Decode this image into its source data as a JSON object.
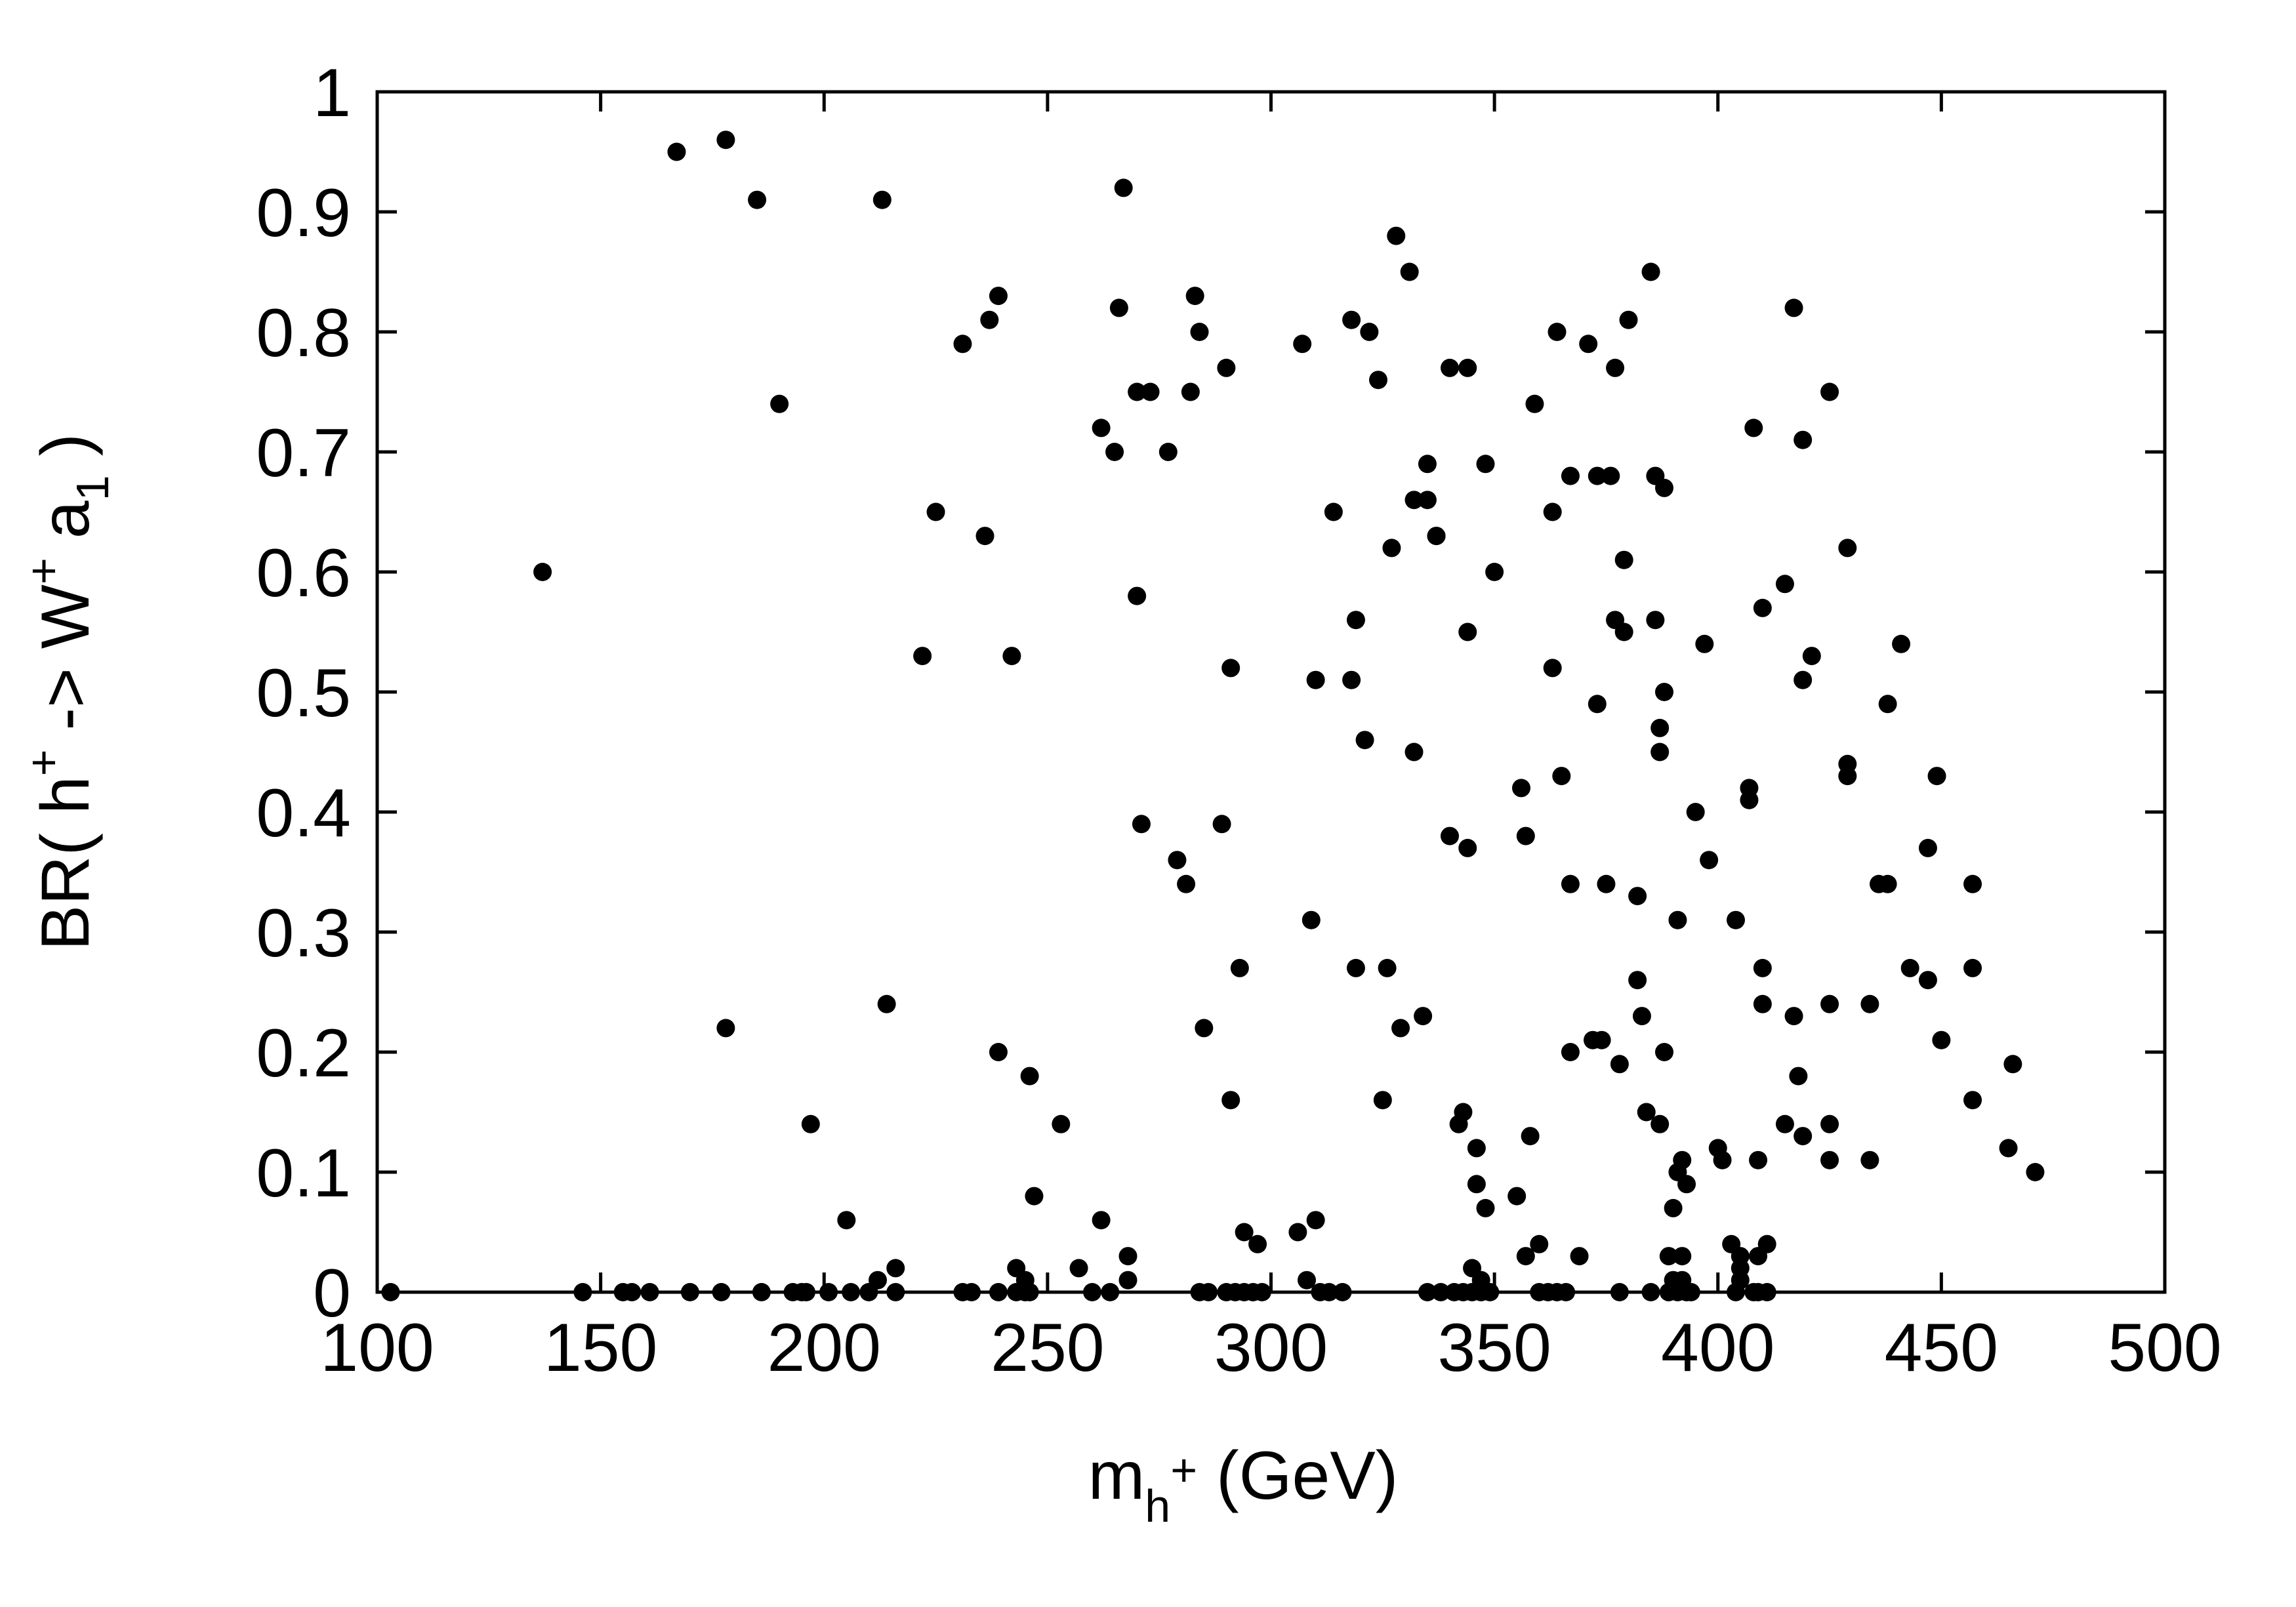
{
  "chart_data": {
    "type": "scatter",
    "title": "",
    "xlabel": {
      "base": "m",
      "sub": "h",
      "sup": "+",
      "rest": " (GeV)"
    },
    "ylabel": {
      "prefix": "BR( h",
      "sup1": "+",
      "middle": " -> W",
      "sup2": "+",
      "space": " a",
      "sub": "1",
      "suffix": " )"
    },
    "xlim": [
      100,
      500
    ],
    "ylim": [
      0,
      1
    ],
    "xticks": [
      100,
      150,
      200,
      250,
      300,
      350,
      400,
      450,
      500
    ],
    "xtick_labels": [
      "100",
      "150",
      "200",
      "250",
      "300",
      "350",
      "400",
      "450",
      "500"
    ],
    "yticks": [
      0,
      0.1,
      0.2,
      0.3,
      0.4,
      0.5,
      0.6,
      0.7,
      0.8,
      0.9,
      1
    ],
    "ytick_labels": [
      "0",
      "0.1",
      "0.2",
      "0.3",
      "0.4",
      "0.5",
      "0.6",
      "0.7",
      "0.8",
      "0.9",
      "1"
    ],
    "grid": false,
    "legend": "none",
    "marker_color": "#000000",
    "points": [
      [
        103,
        0.0
      ],
      [
        137,
        0.6
      ],
      [
        146,
        0.0
      ],
      [
        155,
        0.0
      ],
      [
        157,
        0.0
      ],
      [
        161,
        0.0
      ],
      [
        167,
        0.95
      ],
      [
        170,
        0.0
      ],
      [
        177,
        0.0
      ],
      [
        178,
        0.96
      ],
      [
        178,
        0.22
      ],
      [
        185,
        0.91
      ],
      [
        186,
        0.0
      ],
      [
        190,
        0.74
      ],
      [
        193,
        0.0
      ],
      [
        195,
        0.0
      ],
      [
        196,
        0.0
      ],
      [
        197,
        0.14
      ],
      [
        201,
        0.0
      ],
      [
        205,
        0.06
      ],
      [
        206,
        0.0
      ],
      [
        210,
        0.0
      ],
      [
        212,
        0.01
      ],
      [
        213,
        0.91
      ],
      [
        214,
        0.24
      ],
      [
        216,
        0.02
      ],
      [
        216,
        0.0
      ],
      [
        222,
        0.53
      ],
      [
        225,
        0.65
      ],
      [
        231,
        0.79
      ],
      [
        231,
        0.0
      ],
      [
        233,
        0.0
      ],
      [
        236,
        0.63
      ],
      [
        237,
        0.81
      ],
      [
        239,
        0.83
      ],
      [
        239,
        0.2
      ],
      [
        239,
        0.0
      ],
      [
        242,
        0.53
      ],
      [
        243,
        0.02
      ],
      [
        243,
        0.0
      ],
      [
        245,
        0.01
      ],
      [
        245,
        0.0
      ],
      [
        246,
        0.0
      ],
      [
        246,
        0.18
      ],
      [
        247,
        0.08
      ],
      [
        253,
        0.14
      ],
      [
        257,
        0.02
      ],
      [
        260,
        0.0
      ],
      [
        262,
        0.06
      ],
      [
        262,
        0.72
      ],
      [
        264,
        0.0
      ],
      [
        265,
        0.7
      ],
      [
        266,
        0.82
      ],
      [
        267,
        0.92
      ],
      [
        268,
        0.01
      ],
      [
        268,
        0.03
      ],
      [
        270,
        0.58
      ],
      [
        270,
        0.75
      ],
      [
        271,
        0.39
      ],
      [
        273,
        0.75
      ],
      [
        277,
        0.7
      ],
      [
        279,
        0.36
      ],
      [
        281,
        0.34
      ],
      [
        282,
        0.75
      ],
      [
        283,
        0.83
      ],
      [
        284,
        0.8
      ],
      [
        284,
        0.0
      ],
      [
        285,
        0.22
      ],
      [
        286,
        0.0
      ],
      [
        289,
        0.39
      ],
      [
        290,
        0.77
      ],
      [
        290,
        0.0
      ],
      [
        291,
        0.16
      ],
      [
        291,
        0.52
      ],
      [
        292,
        0.0
      ],
      [
        293,
        0.27
      ],
      [
        294,
        0.05
      ],
      [
        294,
        0.0
      ],
      [
        296,
        0.0
      ],
      [
        297,
        0.04
      ],
      [
        298,
        0.0
      ],
      [
        306,
        0.05
      ],
      [
        307,
        0.79
      ],
      [
        308,
        0.01
      ],
      [
        309,
        0.31
      ],
      [
        310,
        0.06
      ],
      [
        310,
        0.51
      ],
      [
        311,
        0.0
      ],
      [
        313,
        0.0
      ],
      [
        314,
        0.65
      ],
      [
        316,
        0.0
      ],
      [
        318,
        0.81
      ],
      [
        318,
        0.51
      ],
      [
        319,
        0.27
      ],
      [
        319,
        0.56
      ],
      [
        321,
        0.46
      ],
      [
        322,
        0.8
      ],
      [
        324,
        0.76
      ],
      [
        325,
        0.16
      ],
      [
        326,
        0.27
      ],
      [
        327,
        0.62
      ],
      [
        328,
        0.88
      ],
      [
        329,
        0.22
      ],
      [
        331,
        0.85
      ],
      [
        332,
        0.66
      ],
      [
        332,
        0.45
      ],
      [
        334,
        0.23
      ],
      [
        335,
        0.69
      ],
      [
        335,
        0.66
      ],
      [
        335,
        0.0
      ],
      [
        337,
        0.63
      ],
      [
        337,
        0.63
      ],
      [
        338,
        0.0
      ],
      [
        340,
        0.77
      ],
      [
        340,
        0.38
      ],
      [
        341,
        0.0
      ],
      [
        342,
        0.14
      ],
      [
        343,
        0.15
      ],
      [
        343,
        0.0
      ],
      [
        344,
        0.77
      ],
      [
        344,
        0.37
      ],
      [
        344,
        0.55
      ],
      [
        345,
        0.02
      ],
      [
        345,
        0.0
      ],
      [
        346,
        0.12
      ],
      [
        346,
        0.09
      ],
      [
        347,
        0.01
      ],
      [
        347,
        0.0
      ],
      [
        348,
        0.07
      ],
      [
        348,
        0.69
      ],
      [
        349,
        0.0
      ],
      [
        350,
        0.6
      ],
      [
        355,
        0.08
      ],
      [
        356,
        0.42
      ],
      [
        357,
        0.38
      ],
      [
        357,
        0.03
      ],
      [
        358,
        0.13
      ],
      [
        359,
        0.74
      ],
      [
        360,
        0.04
      ],
      [
        360,
        0.0
      ],
      [
        362,
        0.0
      ],
      [
        363,
        0.52
      ],
      [
        363,
        0.65
      ],
      [
        364,
        0.8
      ],
      [
        364,
        0.0
      ],
      [
        365,
        0.43
      ],
      [
        366,
        0.0
      ],
      [
        367,
        0.68
      ],
      [
        367,
        0.34
      ],
      [
        367,
        0.2
      ],
      [
        369,
        0.03
      ],
      [
        371,
        0.79
      ],
      [
        372,
        0.21
      ],
      [
        373,
        0.68
      ],
      [
        373,
        0.49
      ],
      [
        374,
        0.21
      ],
      [
        375,
        0.34
      ],
      [
        376,
        0.68
      ],
      [
        377,
        0.77
      ],
      [
        377,
        0.56
      ],
      [
        378,
        0.19
      ],
      [
        378,
        0.0
      ],
      [
        379,
        0.55
      ],
      [
        379,
        0.61
      ],
      [
        380,
        0.81
      ],
      [
        382,
        0.26
      ],
      [
        382,
        0.33
      ],
      [
        383,
        0.23
      ],
      [
        384,
        0.15
      ],
      [
        385,
        0.85
      ],
      [
        385,
        0.0
      ],
      [
        386,
        0.56
      ],
      [
        386,
        0.68
      ],
      [
        387,
        0.45
      ],
      [
        387,
        0.47
      ],
      [
        387,
        0.14
      ],
      [
        388,
        0.67
      ],
      [
        388,
        0.5
      ],
      [
        388,
        0.2
      ],
      [
        389,
        0.03
      ],
      [
        389,
        0.0
      ],
      [
        390,
        0.01
      ],
      [
        390,
        0.07
      ],
      [
        391,
        0.1
      ],
      [
        391,
        0.31
      ],
      [
        391,
        0.0
      ],
      [
        392,
        0.03
      ],
      [
        392,
        0.11
      ],
      [
        392,
        0.01
      ],
      [
        393,
        0.09
      ],
      [
        393,
        0.0
      ],
      [
        394,
        0.0
      ],
      [
        395,
        0.4
      ],
      [
        397,
        0.54
      ],
      [
        398,
        0.36
      ],
      [
        400,
        0.12
      ],
      [
        401,
        0.11
      ],
      [
        403,
        0.04
      ],
      [
        404,
        0.31
      ],
      [
        404,
        0.0
      ],
      [
        405,
        0.03
      ],
      [
        405,
        0.02
      ],
      [
        405,
        0.01
      ],
      [
        407,
        0.41
      ],
      [
        407,
        0.42
      ],
      [
        408,
        0.72
      ],
      [
        408,
        0.0
      ],
      [
        409,
        0.03
      ],
      [
        409,
        0.11
      ],
      [
        409,
        0.0
      ],
      [
        410,
        0.57
      ],
      [
        410,
        0.27
      ],
      [
        410,
        0.24
      ],
      [
        411,
        0.0
      ],
      [
        411,
        0.04
      ],
      [
        415,
        0.59
      ],
      [
        415,
        0.14
      ],
      [
        417,
        0.23
      ],
      [
        417,
        0.82
      ],
      [
        418,
        0.18
      ],
      [
        419,
        0.71
      ],
      [
        419,
        0.51
      ],
      [
        419,
        0.13
      ],
      [
        421,
        0.53
      ],
      [
        425,
        0.75
      ],
      [
        425,
        0.24
      ],
      [
        425,
        0.14
      ],
      [
        425,
        0.11
      ],
      [
        429,
        0.44
      ],
      [
        429,
        0.43
      ],
      [
        429,
        0.62
      ],
      [
        434,
        0.24
      ],
      [
        434,
        0.11
      ],
      [
        436,
        0.34
      ],
      [
        438,
        0.34
      ],
      [
        438,
        0.49
      ],
      [
        441,
        0.54
      ],
      [
        443,
        0.27
      ],
      [
        447,
        0.26
      ],
      [
        447,
        0.37
      ],
      [
        449,
        0.43
      ],
      [
        450,
        0.21
      ],
      [
        457,
        0.34
      ],
      [
        457,
        0.27
      ],
      [
        457,
        0.16
      ],
      [
        465,
        0.12
      ],
      [
        466,
        0.19
      ],
      [
        471,
        0.1
      ]
    ]
  }
}
